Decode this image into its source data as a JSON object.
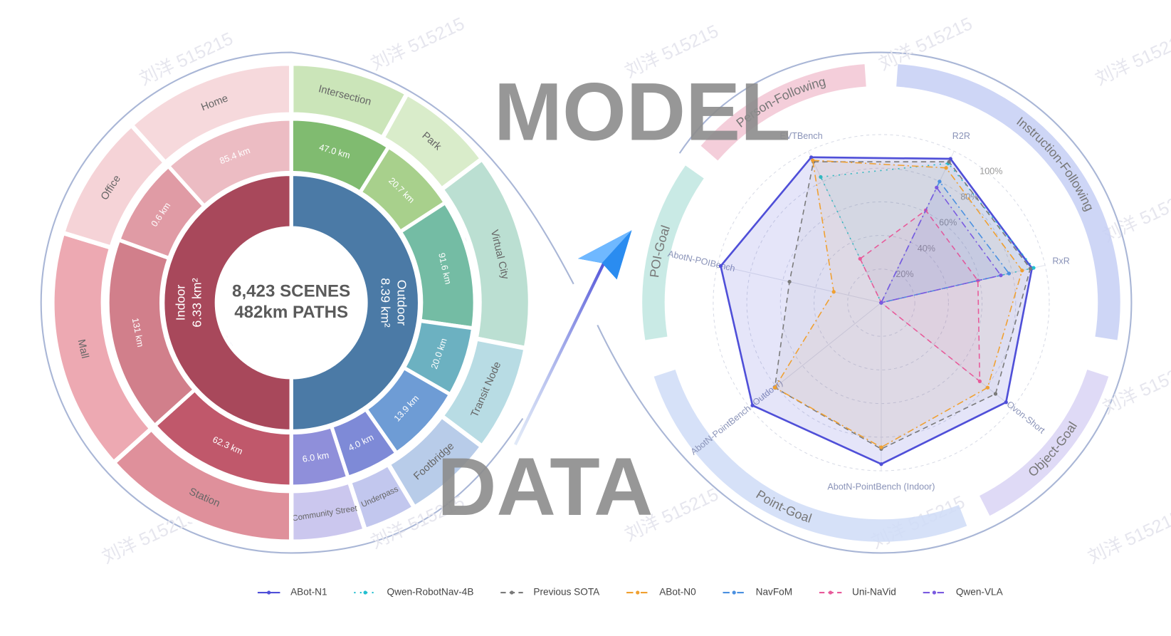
{
  "banner": {
    "top": "MODEL",
    "bottom": "DATA"
  },
  "watermark": "刘洋 515215",
  "sunburst": {
    "center": [
      "8,423 SCENES",
      "482km PATHS"
    ],
    "groups": [
      {
        "name": "Outdoor",
        "area": "8.39 km²",
        "color": "#4b7aa6",
        "children": [
          {
            "scene": "Intersection",
            "length": "47.0 km",
            "color": "#80bb70",
            "scene_color": "#cbe5b9"
          },
          {
            "scene": "Park",
            "length": "20.7 km",
            "color": "#a8d08c",
            "scene_color": "#d9ecca"
          },
          {
            "scene": "Virtual City",
            "length": "91.6 km",
            "color": "#74bca4",
            "scene_color": "#bbdfd2"
          },
          {
            "scene": "Transit Node",
            "length": "20.0 km",
            "color": "#6cb1c1",
            "scene_color": "#b8dce4"
          },
          {
            "scene": "Footbridge",
            "length": "13.9 km",
            "color": "#6e9cd5",
            "scene_color": "#b8cce9"
          },
          {
            "scene": "Underpass",
            "length": "4.0 km",
            "color": "#7e8ad7",
            "scene_color": "#c2c7ee"
          },
          {
            "scene": "Community Street",
            "length": "6.0 km",
            "color": "#8f8fda",
            "scene_color": "#cbc7ee"
          }
        ]
      },
      {
        "name": "Indoor",
        "area": "6.33 km²",
        "color": "#a8485b",
        "children": [
          {
            "scene": "Station",
            "length": "62.3 km",
            "color": "#c0586b",
            "scene_color": "#df909b"
          },
          {
            "scene": "Mall",
            "length": "131 km",
            "color": "#d17f8b",
            "scene_color": "#eda9b2"
          },
          {
            "scene": "Office",
            "length": "0.6 km",
            "color": "#e09ba5",
            "scene_color": "#f5d3d7"
          },
          {
            "scene": "Home",
            "length": "85.4 km",
            "color": "#ecbcc3",
            "scene_color": "#f6d9dc"
          }
        ]
      }
    ]
  },
  "chart_data": {
    "type": "radar",
    "axes": [
      "EVTBench",
      "R2R",
      "RxR",
      "Ovon-Short",
      "AbotN-PointBench (Indoor)",
      "AbotN-PointBench (Outdoor)",
      "AbotN-POIBench"
    ],
    "rlim": [
      0,
      100
    ],
    "rticks": [
      {
        "value": 20,
        "label": "20%"
      },
      {
        "value": 40,
        "label": "40%"
      },
      {
        "value": 60,
        "label": "60%"
      },
      {
        "value": 80,
        "label": "80%"
      },
      {
        "value": 100,
        "label": "100%"
      }
    ],
    "groups": [
      {
        "name": "Person-Following",
        "color": "#f2c6d3"
      },
      {
        "name": "Instruction-Following",
        "color": "#c5cff5"
      },
      {
        "name": "Object-Goal",
        "color": "#d9d4f5"
      },
      {
        "name": "Point-Goal",
        "color": "#cfdcf7"
      },
      {
        "name": "POI-Goal",
        "color": "#bfe6e0"
      }
    ],
    "legend_position": "bottom",
    "series": [
      {
        "name": "ABot-N1",
        "color": "#4f4fd8",
        "line_style": "solid",
        "values": [
          96,
          95,
          92,
          95,
          96,
          98,
          98
        ]
      },
      {
        "name": "Qwen-RobotNav-4B",
        "color": "#22bfd0",
        "line_style": "dotted",
        "values": [
          83,
          92,
          93,
          0,
          0,
          0,
          0
        ]
      },
      {
        "name": "Previous SOTA",
        "color": "#7a7a7a",
        "line_style": "dashed",
        "values": [
          93,
          93,
          91,
          87,
          87,
          81,
          56
        ]
      },
      {
        "name": "ABot-N0",
        "color": "#f0a030",
        "line_style": "dashdot",
        "values": [
          94,
          89,
          86,
          81,
          86,
          81,
          29
        ]
      },
      {
        "name": "NavFoM",
        "color": "#4a90e0",
        "line_style": "dashdot",
        "values": [
          0,
          80,
          78,
          0,
          0,
          0,
          0
        ]
      },
      {
        "name": "Uni-NaVid",
        "color": "#e85a9a",
        "line_style": "dashed",
        "values": [
          29,
          61,
          59,
          75,
          0,
          0,
          0
        ]
      },
      {
        "name": "Qwen-VLA",
        "color": "#7a5ae0",
        "line_style": "dashdot",
        "values": [
          0,
          76,
          73,
          0,
          0,
          0,
          0
        ]
      }
    ]
  }
}
